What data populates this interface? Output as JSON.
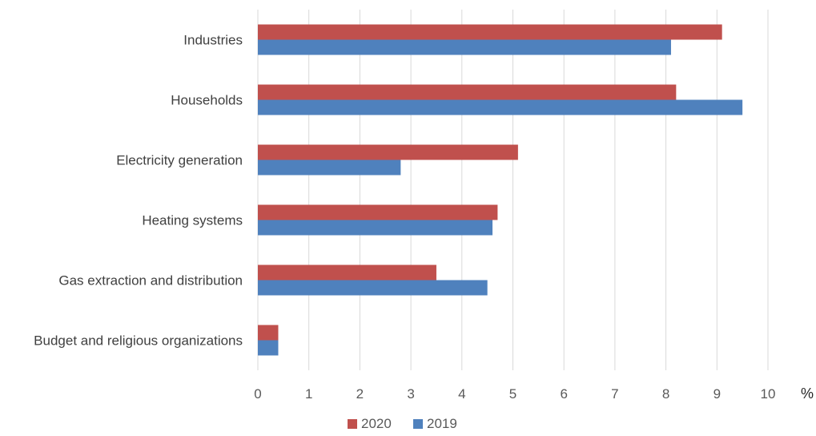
{
  "chart_data": {
    "type": "bar",
    "orientation": "horizontal",
    "categories": [
      "Industries",
      "Households",
      "Electricity generation",
      "Heating systems",
      "Gas extraction and distribution",
      "Budget and religious organizations"
    ],
    "series": [
      {
        "name": "2020",
        "color": "#C0504D",
        "values": [
          9.1,
          8.2,
          5.1,
          4.7,
          3.5,
          0.4
        ]
      },
      {
        "name": "2019",
        "color": "#4F81BD",
        "values": [
          8.1,
          9.5,
          2.8,
          4.6,
          4.5,
          0.4
        ]
      }
    ],
    "x_ticks": [
      "0",
      "1",
      "2",
      "3",
      "4",
      "5",
      "6",
      "7",
      "8",
      "9",
      "10"
    ],
    "xlim": [
      0,
      10
    ],
    "x_unit": "%",
    "title": "",
    "xlabel": "",
    "ylabel": "",
    "grid": "vertical",
    "legend_position": "bottom"
  }
}
